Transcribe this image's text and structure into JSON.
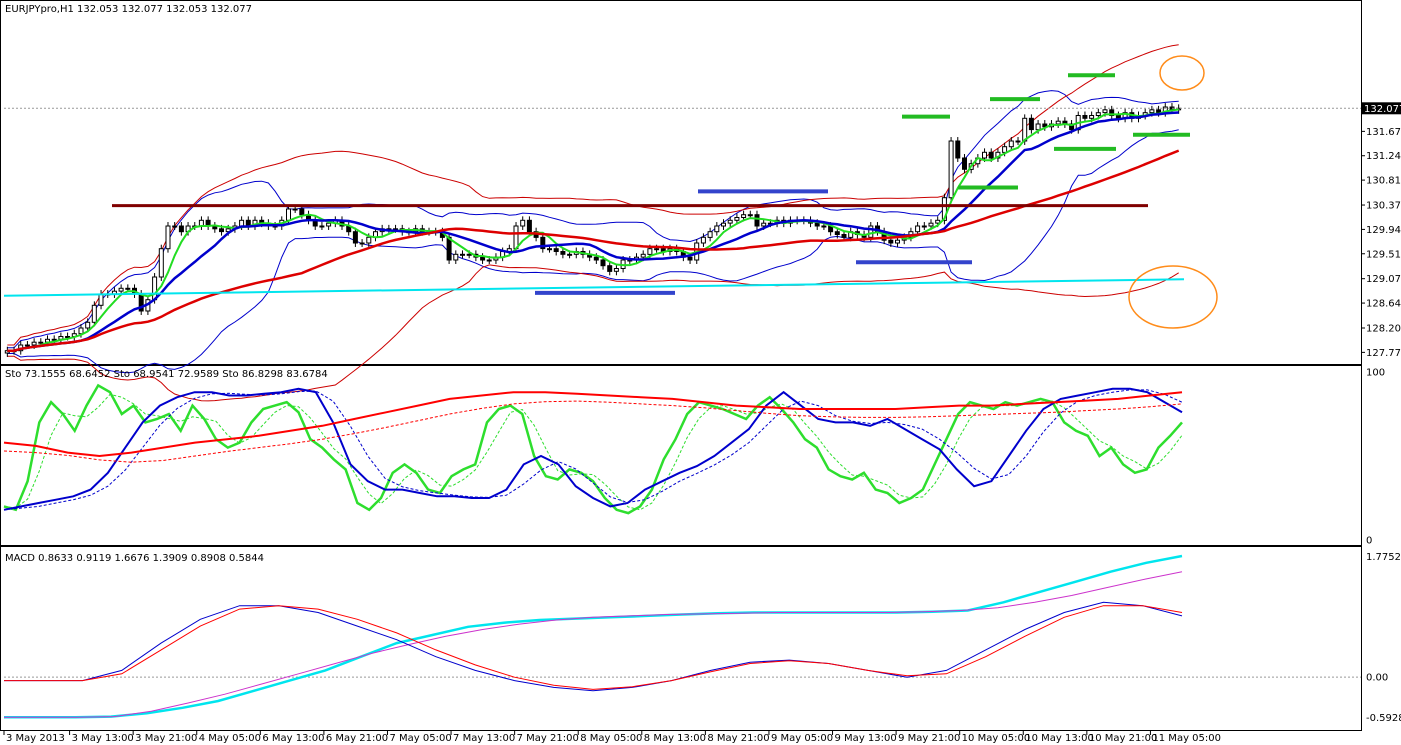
{
  "chart_data": [
    {
      "type": "candlestick",
      "header": "EURJPYpro,H1  132.053 132.077 132.053 132.077",
      "symbol": "EURJPYpro",
      "timeframe": "H1",
      "ohlc_last": [
        132.053,
        132.077,
        132.053,
        132.077
      ],
      "last_price_label": "132.077",
      "ylim": [
        127.6,
        133.9
      ],
      "ytick_labels": [
        "131.670",
        "131.240",
        "130.810",
        "130.370",
        "129.940",
        "129.510",
        "129.070",
        "128.640",
        "128.200",
        "127.770"
      ],
      "yticks": [
        131.67,
        131.24,
        130.81,
        130.37,
        129.94,
        129.51,
        129.07,
        128.64,
        128.2,
        127.77
      ],
      "resistance_level": 130.36,
      "trendline_cyan": [
        [
          0,
          128.77
        ],
        [
          1180,
          129.06
        ]
      ],
      "candles_close": [
        127.8,
        127.8,
        127.9,
        127.9,
        127.95,
        127.95,
        128.0,
        128.0,
        128.05,
        128.05,
        128.1,
        128.2,
        128.3,
        128.6,
        128.8,
        128.8,
        128.85,
        128.9,
        128.9,
        128.8,
        128.5,
        128.7,
        129.1,
        129.6,
        130.0,
        130.0,
        129.9,
        130.0,
        130.0,
        130.1,
        130.0,
        129.95,
        129.9,
        129.95,
        130.0,
        130.1,
        130.0,
        130.1,
        130.05,
        130.0,
        130.0,
        130.1,
        130.3,
        130.3,
        130.2,
        130.1,
        130.0,
        130.0,
        130.05,
        130.1,
        130.0,
        129.9,
        129.7,
        129.7,
        129.8,
        129.9,
        129.95,
        129.95,
        129.95,
        129.9,
        129.9,
        129.95,
        129.9,
        129.9,
        129.9,
        129.8,
        129.4,
        129.5,
        129.5,
        129.5,
        129.45,
        129.4,
        129.4,
        129.45,
        129.55,
        129.6,
        130.0,
        130.1,
        129.9,
        129.8,
        129.6,
        129.6,
        129.55,
        129.5,
        129.5,
        129.55,
        129.5,
        129.45,
        129.4,
        129.3,
        129.2,
        129.25,
        129.4,
        129.4,
        129.45,
        129.5,
        129.6,
        129.6,
        129.55,
        129.6,
        129.55,
        129.45,
        129.4,
        129.7,
        129.8,
        129.9,
        130.0,
        130.05,
        130.1,
        130.15,
        130.2,
        130.2,
        130.0,
        130.05,
        130.05,
        130.1,
        130.05,
        130.1,
        130.1,
        130.1,
        130.05,
        130.0,
        130.0,
        129.9,
        129.85,
        129.8,
        129.9,
        129.85,
        129.8,
        130.0,
        129.9,
        129.75,
        129.7,
        129.75,
        129.8,
        129.9,
        130.0,
        130.0,
        130.05,
        130.1,
        130.5,
        131.5,
        131.2,
        131.0,
        131.1,
        131.2,
        131.3,
        131.2,
        131.3,
        131.4,
        131.5,
        131.5,
        131.9,
        131.7,
        131.8,
        131.75,
        131.8,
        131.85,
        131.8,
        131.7,
        131.95,
        131.9,
        131.95,
        132.0,
        132.05,
        131.95,
        131.9,
        132.0,
        131.9,
        131.95,
        132.0,
        132.05,
        132.0,
        132.1,
        132.05,
        132.077
      ]
    },
    {
      "type": "line",
      "header": "Sto 73.1555 68.6452 Sto 68.9541 72.9589 Sto 86.8298 83.6784",
      "ylim": [
        0,
        100
      ],
      "ytick_labels": [
        "100",
        "0"
      ],
      "series": [
        {
          "color": "#2ede2e",
          "values": [
            20,
            18,
            35,
            70,
            82,
            75,
            65,
            80,
            92,
            88,
            75,
            80,
            70,
            72,
            75,
            65,
            80,
            72,
            60,
            55,
            58,
            70,
            78,
            80,
            82,
            76,
            60,
            55,
            48,
            42,
            22,
            18,
            25,
            40,
            45,
            40,
            30,
            28,
            38,
            42,
            45,
            70,
            78,
            80,
            75,
            50,
            38,
            36,
            42,
            40,
            35,
            25,
            18,
            16,
            20,
            30,
            48,
            60,
            75,
            82,
            80,
            78,
            75,
            72,
            80,
            85,
            78,
            70,
            60,
            55,
            42,
            38,
            36,
            40,
            30,
            28,
            22,
            25,
            30,
            45,
            60,
            75,
            82,
            80,
            78,
            82,
            80,
            82,
            84,
            82,
            70,
            65,
            62,
            50,
            55,
            45,
            40,
            42,
            55,
            62,
            70
          ]
        },
        {
          "color": "#0000cc",
          "values": [
            18,
            20,
            22,
            24,
            26,
            30,
            40,
            55,
            70,
            80,
            85,
            88,
            88,
            86,
            86,
            87,
            88,
            90,
            88,
            70,
            45,
            35,
            30,
            30,
            28,
            26,
            26,
            25,
            25,
            30,
            45,
            50,
            45,
            32,
            25,
            20,
            22,
            30,
            35,
            40,
            44,
            50,
            58,
            66,
            80,
            88,
            80,
            72,
            70,
            70,
            68,
            72,
            66,
            60,
            54,
            42,
            32,
            35,
            50,
            65,
            78,
            84,
            86,
            88,
            90,
            90,
            88,
            82,
            76
          ]
        },
        {
          "color": "#ff0000",
          "values": [
            58,
            56,
            52,
            50,
            52,
            55,
            58,
            60,
            62,
            65,
            68,
            72,
            76,
            80,
            84,
            86,
            88,
            88,
            87,
            86,
            85,
            84,
            82,
            80,
            79,
            78,
            78,
            78,
            78,
            79,
            80,
            80,
            81,
            82,
            83,
            84,
            86,
            88
          ]
        }
      ]
    },
    {
      "type": "line",
      "header": "MACD 0.8633 0.9119 1.6676 1.3909 0.8908 0.5844",
      "ylim": [
        -0.6,
        1.78
      ],
      "ytick_labels": [
        "1.7752",
        "0.00",
        "-0.5928"
      ],
      "yticks": [
        1.7752,
        0.0,
        -0.5928
      ],
      "series": [
        {
          "color": "#00e5ee",
          "values": [
            -0.59,
            -0.59,
            -0.59,
            -0.58,
            -0.53,
            -0.45,
            -0.35,
            -0.2,
            -0.05,
            0.1,
            0.3,
            0.5,
            0.62,
            0.74,
            0.8,
            0.84,
            0.86,
            0.88,
            0.9,
            0.92,
            0.94,
            0.95,
            0.95,
            0.95,
            0.95,
            0.95,
            0.96,
            0.98,
            1.1,
            1.25,
            1.4,
            1.55,
            1.68,
            1.78
          ]
        },
        {
          "color": "#cc33cc",
          "values": [
            -0.59,
            -0.59,
            -0.59,
            -0.58,
            -0.5,
            -0.38,
            -0.25,
            -0.1,
            0.05,
            0.2,
            0.35,
            0.48,
            0.6,
            0.7,
            0.78,
            0.84,
            0.88,
            0.9,
            0.92,
            0.93,
            0.94,
            0.95,
            0.95,
            0.95,
            0.95,
            0.96,
            0.98,
            1.02,
            1.1,
            1.2,
            1.32,
            1.44,
            1.55
          ]
        },
        {
          "color": "#0000cc",
          "values": [
            -0.05,
            -0.05,
            -0.05,
            0.1,
            0.5,
            0.85,
            1.05,
            1.05,
            0.95,
            0.75,
            0.55,
            0.3,
            0.1,
            -0.05,
            -0.15,
            -0.2,
            -0.15,
            -0.05,
            0.1,
            0.22,
            0.25,
            0.2,
            0.1,
            0.0,
            0.1,
            0.4,
            0.7,
            0.95,
            1.1,
            1.05,
            0.9
          ]
        },
        {
          "color": "#ff0000",
          "values": [
            -0.05,
            -0.05,
            -0.05,
            0.05,
            0.4,
            0.75,
            1.0,
            1.05,
            1.0,
            0.85,
            0.65,
            0.4,
            0.18,
            0.0,
            -0.12,
            -0.18,
            -0.14,
            -0.05,
            0.08,
            0.2,
            0.24,
            0.2,
            0.1,
            0.02,
            0.05,
            0.3,
            0.6,
            0.88,
            1.05,
            1.05,
            0.95
          ]
        }
      ]
    }
  ],
  "x_axis": {
    "labels": [
      "3 May 2013",
      "3 May 13:00",
      "3 May 21:00",
      "4 May 05:00",
      "6 May 13:00",
      "6 May 21:00",
      "7 May 05:00",
      "7 May 13:00",
      "7 May 21:00",
      "8 May 05:00",
      "8 May 13:00",
      "8 May 21:00",
      "9 May 05:00",
      "9 May 13:00",
      "9 May 21:00",
      "10 May 05:00",
      "10 May 13:00",
      "10 May 21:00",
      "11 May 05:00"
    ]
  },
  "colors": {
    "bollinger": "#0000cc",
    "envelope": "#cc0000",
    "resistance": "#800000",
    "trendline": "#00e5ee",
    "support_marks": "#3344cc",
    "resistance_marks": "#22bb22",
    "highlight_circle": "#ff8c1a"
  }
}
